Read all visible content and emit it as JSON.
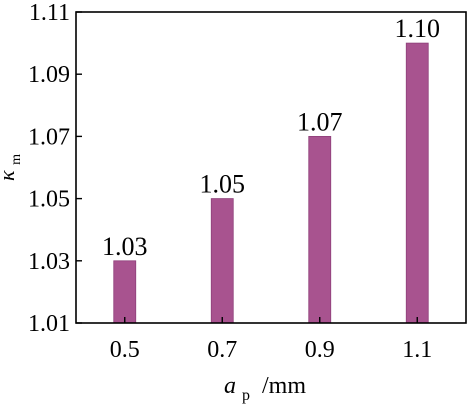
{
  "chart_data": {
    "type": "bar",
    "title": "",
    "xlabel": {
      "main": "a",
      "subscript": "p",
      "unit": "/mm"
    },
    "ylabel": {
      "main": "κ",
      "subscript": "m"
    },
    "categories": [
      "0.5",
      "0.7",
      "0.9",
      "1.1"
    ],
    "values": [
      1.03,
      1.05,
      1.07,
      1.1
    ],
    "data_labels": [
      "1.03",
      "1.05",
      "1.07",
      "1.10"
    ],
    "ylim": [
      1.01,
      1.11
    ],
    "yticks": [
      "1.01",
      "1.03",
      "1.05",
      "1.07",
      "1.09",
      "1.11"
    ],
    "grid": false,
    "legend": "none",
    "bar_color": "#A8538F",
    "bar_edge_color": "#8E3F7A"
  }
}
